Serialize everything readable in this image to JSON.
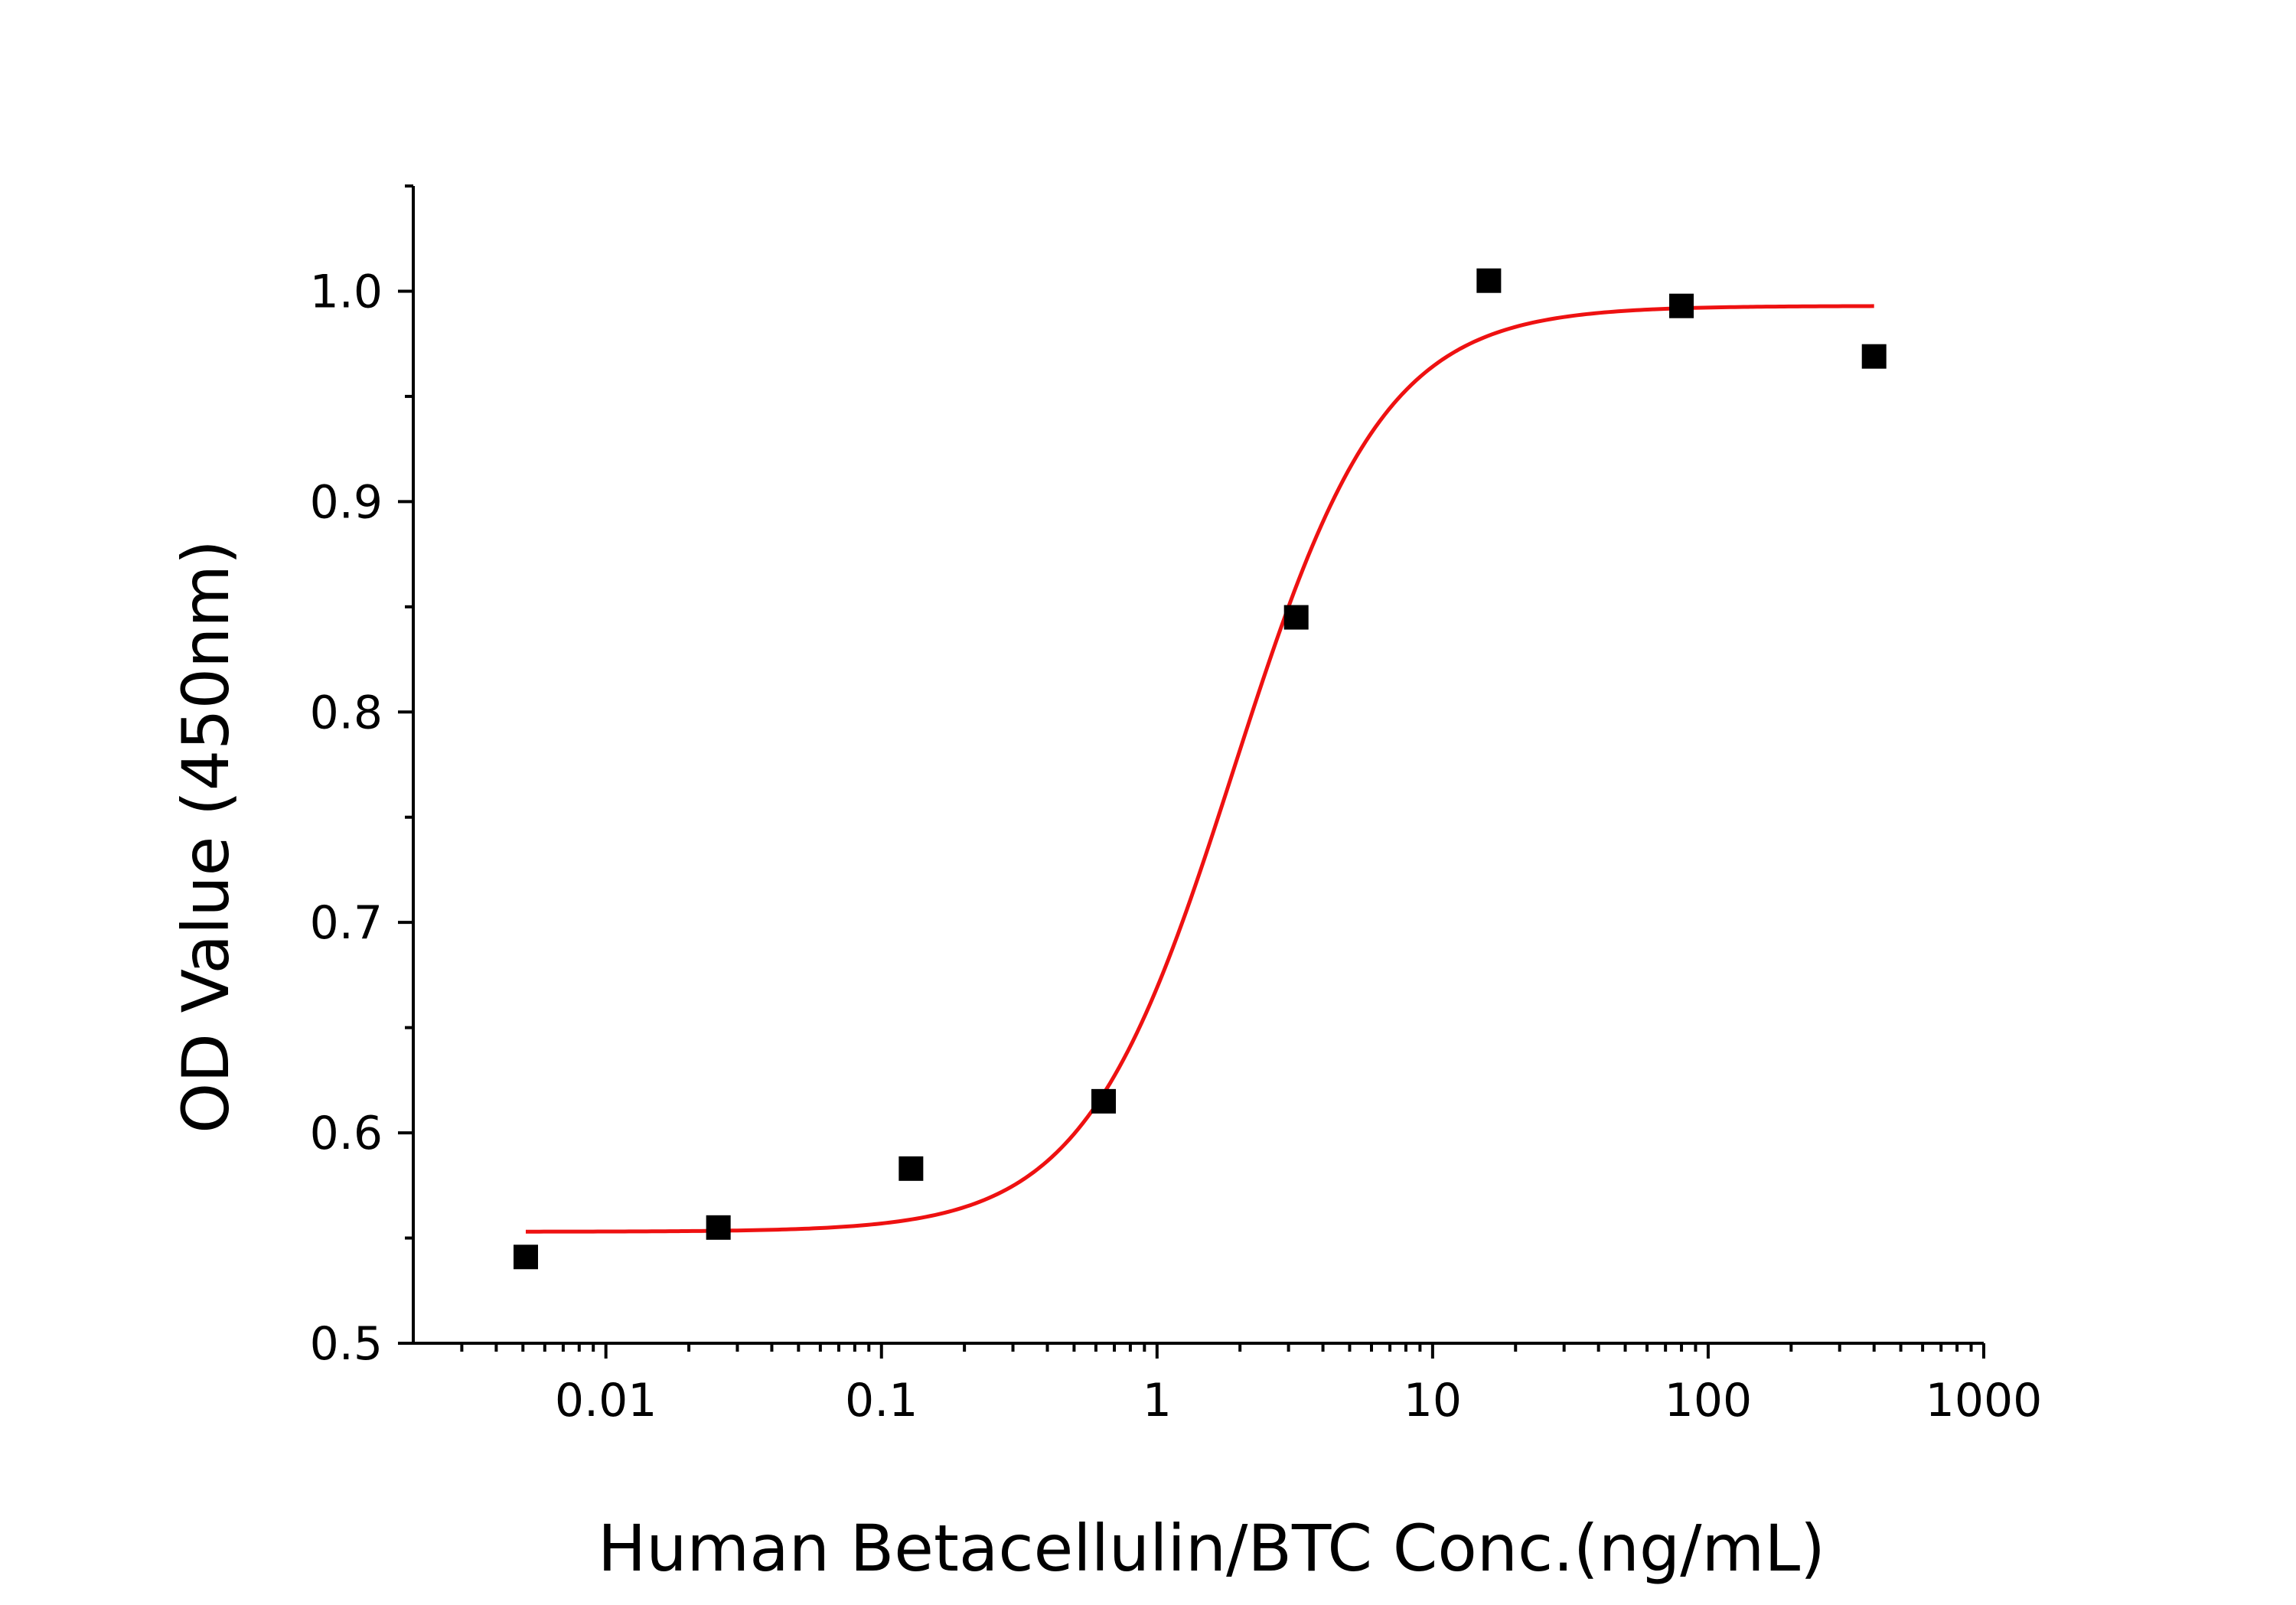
{
  "chart_data": {
    "type": "scatter",
    "xlabel": "Human Betacellulin/BTC Conc.(ng/mL)",
    "ylabel": "OD Value (450nm)",
    "xscale": "log",
    "xlim": [
      0.002,
      1000
    ],
    "ylim": [
      0.5,
      1.05
    ],
    "grid": false,
    "x_ticks": [
      0.01,
      0.1,
      1,
      10,
      100,
      1000
    ],
    "x_tick_labels": [
      "0.01",
      "0.1",
      "1",
      "10",
      "100",
      "1000"
    ],
    "y_ticks": [
      0.5,
      0.6,
      0.7,
      0.8,
      0.9,
      1.0
    ],
    "y_tick_labels": [
      "0.5",
      "0.6",
      "0.7",
      "0.8",
      "0.9",
      "1.0"
    ],
    "points": {
      "marker": "square",
      "color": "#000000",
      "x": [
        0.00512,
        0.0256,
        0.128,
        0.64,
        3.2,
        16,
        80,
        400
      ],
      "y": [
        0.541,
        0.555,
        0.583,
        0.615,
        0.845,
        1.005,
        0.993,
        0.969
      ]
    },
    "fit_curve": {
      "type": "4PL",
      "color": "#ee1111",
      "bottom": 0.553,
      "top": 0.993,
      "ec50": 1.9,
      "hill": 1.6,
      "x_range": [
        0.00512,
        400
      ]
    }
  }
}
